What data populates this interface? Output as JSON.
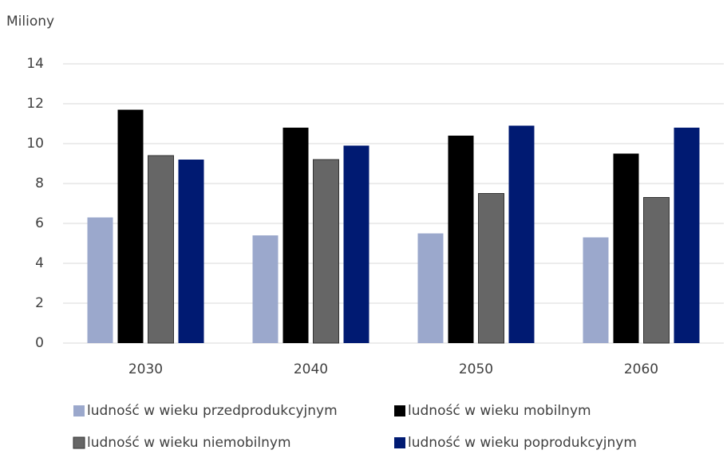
{
  "chart_data": {
    "type": "bar",
    "y_label": "Miliony",
    "categories": [
      "2030",
      "2040",
      "2050",
      "2060"
    ],
    "series": [
      {
        "name": "ludność w wieku przedprodukcyjnym",
        "color": "#9ba8cc",
        "values": [
          6.3,
          5.4,
          5.5,
          5.3
        ]
      },
      {
        "name": "ludność w wieku mobilnym",
        "color": "#000000",
        "values": [
          11.7,
          10.8,
          10.4,
          9.5
        ]
      },
      {
        "name": "ludność w wieku niemobilnym",
        "color": "#666666",
        "values": [
          9.4,
          9.2,
          7.5,
          7.3
        ]
      },
      {
        "name": "ludność w wieku poprodukcyjnym",
        "color": "#001a72",
        "values": [
          9.2,
          9.9,
          10.9,
          10.8
        ]
      }
    ],
    "ylim": [
      0,
      14
    ],
    "yticks": [
      0,
      2,
      4,
      6,
      8,
      10,
      12,
      14
    ],
    "grid": true,
    "legend": "bottom"
  }
}
